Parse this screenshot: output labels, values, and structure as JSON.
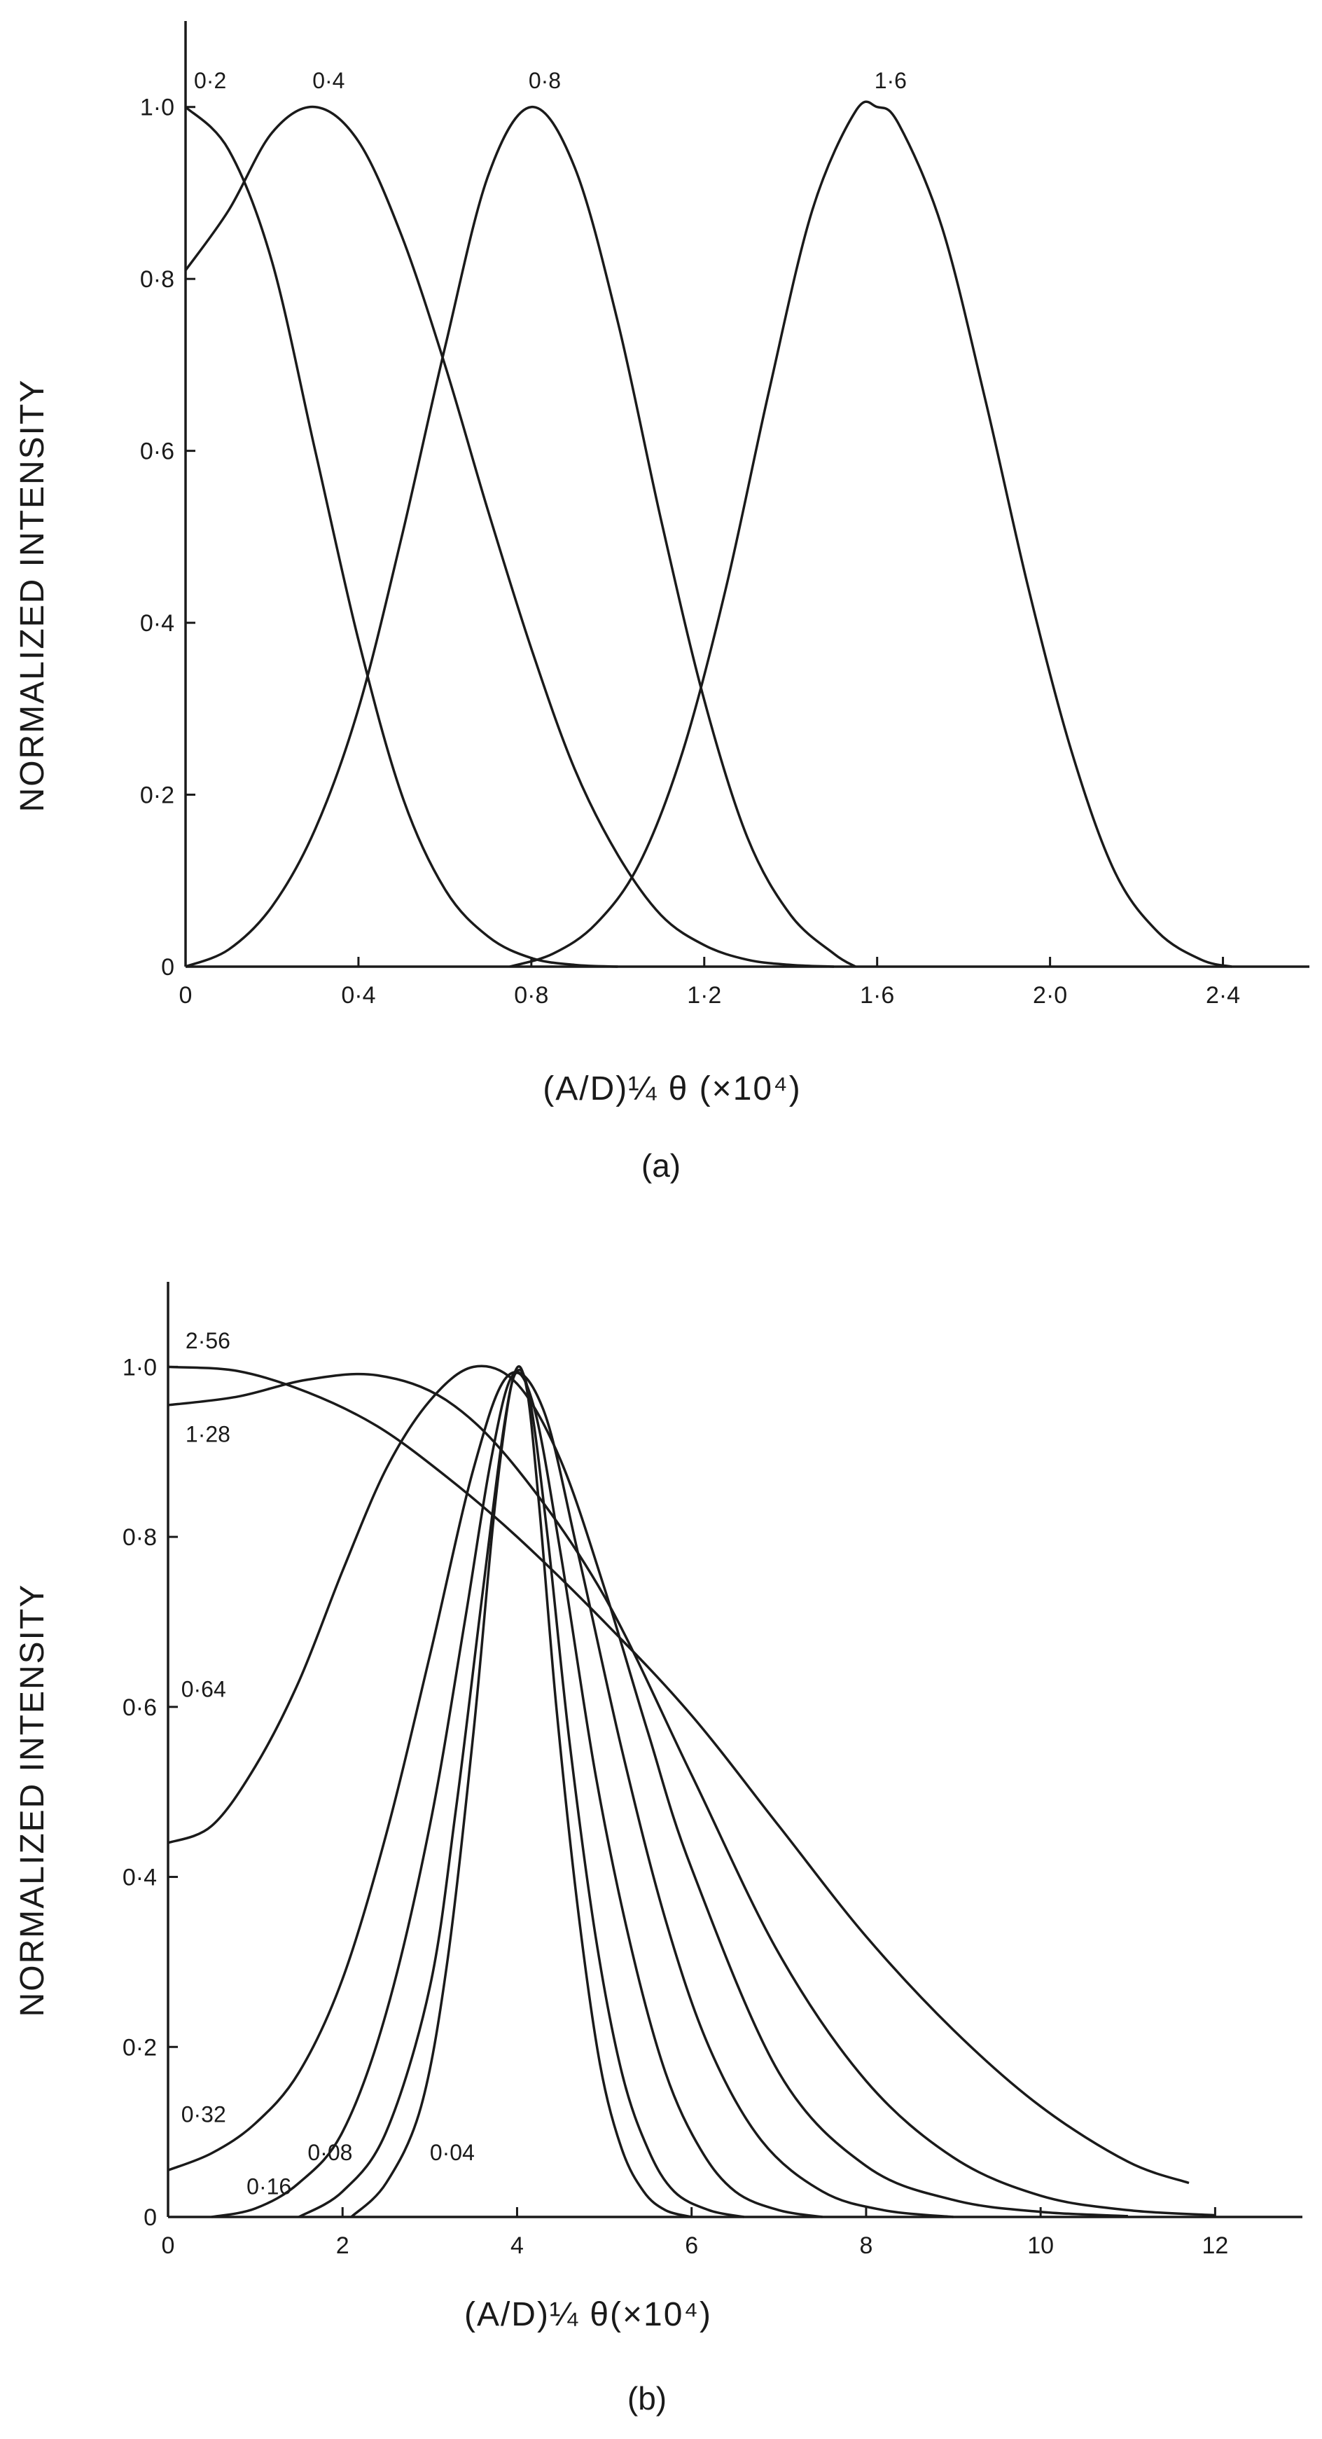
{
  "chart_data": [
    {
      "type": "line",
      "panel": "(a)",
      "ylabel": "NORMALIZED INTENSITY",
      "xlabel": "(A/D)¼ θ (×10⁴)",
      "xlim": [
        0,
        2.6
      ],
      "ylim": [
        0,
        1.1
      ],
      "x_ticks": [
        0,
        0.4,
        0.8,
        1.2,
        1.6,
        2.0,
        2.4
      ],
      "x_tick_labels": [
        "0",
        "0·4",
        "0·8",
        "1·2",
        "1·6",
        "2·0",
        "2·4"
      ],
      "y_ticks": [
        0,
        0.2,
        0.4,
        0.6,
        0.8,
        1.0
      ],
      "y_tick_labels": [
        "0",
        "0·2",
        "0·4",
        "0·6",
        "0·8",
        "1·0"
      ],
      "series": [
        {
          "name": "0·2",
          "x": [
            0,
            0.1,
            0.2,
            0.3,
            0.4,
            0.5,
            0.6,
            0.7,
            0.8,
            0.9,
            1.0
          ],
          "y": [
            1.0,
            0.95,
            0.82,
            0.6,
            0.38,
            0.2,
            0.09,
            0.035,
            0.01,
            0.002,
            0
          ]
        },
        {
          "name": "0·4",
          "x": [
            0,
            0.1,
            0.2,
            0.3,
            0.4,
            0.5,
            0.6,
            0.7,
            0.8,
            0.9,
            1.0,
            1.1,
            1.2,
            1.3,
            1.4,
            1.5
          ],
          "y": [
            0.81,
            0.88,
            0.97,
            1.0,
            0.96,
            0.85,
            0.7,
            0.53,
            0.37,
            0.23,
            0.13,
            0.06,
            0.025,
            0.008,
            0.002,
            0
          ]
        },
        {
          "name": "0·8",
          "x": [
            0,
            0.1,
            0.2,
            0.3,
            0.4,
            0.5,
            0.6,
            0.7,
            0.8,
            0.9,
            1.0,
            1.1,
            1.2,
            1.3,
            1.4,
            1.5,
            1.55
          ],
          "y": [
            0,
            0.02,
            0.07,
            0.16,
            0.3,
            0.5,
            0.72,
            0.92,
            1.0,
            0.93,
            0.75,
            0.52,
            0.31,
            0.15,
            0.06,
            0.015,
            0
          ]
        },
        {
          "name": "1·6",
          "x": [
            0.75,
            0.85,
            0.95,
            1.05,
            1.15,
            1.25,
            1.35,
            1.45,
            1.55,
            1.6,
            1.65,
            1.75,
            1.85,
            1.95,
            2.05,
            2.15,
            2.25,
            2.35,
            2.42
          ],
          "y": [
            0,
            0.015,
            0.05,
            0.12,
            0.25,
            0.44,
            0.67,
            0.88,
            0.995,
            1.0,
            0.98,
            0.86,
            0.66,
            0.44,
            0.25,
            0.11,
            0.04,
            0.008,
            0
          ]
        }
      ],
      "caption": "(a)"
    },
    {
      "type": "line",
      "panel": "(b)",
      "ylabel": "NORMALIZED INTENSITY",
      "xlabel": "(A/D)¼ θ(×10⁴)",
      "xlim": [
        0,
        13
      ],
      "ylim": [
        0,
        1.1
      ],
      "x_ticks": [
        0,
        2,
        4,
        6,
        8,
        10,
        12
      ],
      "x_tick_labels": [
        "0",
        "2",
        "4",
        "6",
        "8",
        "10",
        "12"
      ],
      "y_ticks": [
        0,
        0.2,
        0.4,
        0.6,
        0.8,
        1.0
      ],
      "y_tick_labels": [
        "0",
        "0·2",
        "0·4",
        "0·6",
        "0·8",
        "1·0"
      ],
      "series": [
        {
          "name": "2·56",
          "x": [
            0,
            0.8,
            1.6,
            2.4,
            3.2,
            4,
            5,
            6,
            7,
            8,
            9,
            10,
            11,
            11.7
          ],
          "y": [
            1.0,
            0.995,
            0.97,
            0.93,
            0.87,
            0.8,
            0.7,
            0.59,
            0.46,
            0.33,
            0.22,
            0.13,
            0.065,
            0.04
          ]
        },
        {
          "name": "1·28",
          "x": [
            0,
            0.8,
            1.6,
            2.4,
            3.2,
            4,
            5,
            6,
            7,
            8,
            9,
            10,
            11,
            12
          ],
          "y": [
            0.955,
            0.965,
            0.985,
            0.99,
            0.96,
            0.88,
            0.73,
            0.52,
            0.31,
            0.16,
            0.07,
            0.025,
            0.008,
            0.002
          ]
        },
        {
          "name": "0·64",
          "x": [
            0,
            0.5,
            1,
            1.5,
            2,
            2.5,
            3,
            3.5,
            4,
            4.5,
            5,
            5.5,
            6,
            7,
            8,
            9,
            10,
            11
          ],
          "y": [
            0.44,
            0.46,
            0.53,
            0.63,
            0.76,
            0.88,
            0.96,
            1.0,
            0.98,
            0.89,
            0.74,
            0.57,
            0.41,
            0.17,
            0.06,
            0.02,
            0.006,
            0.001
          ]
        },
        {
          "name": "0·32",
          "x": [
            0,
            0.5,
            1,
            1.5,
            2,
            2.5,
            3,
            3.5,
            3.9,
            4.3,
            4.7,
            5.2,
            5.7,
            6.2,
            6.8,
            7.5,
            8.2,
            9
          ],
          "y": [
            0.055,
            0.075,
            0.11,
            0.17,
            0.28,
            0.45,
            0.66,
            0.88,
            0.99,
            0.95,
            0.78,
            0.55,
            0.35,
            0.2,
            0.09,
            0.03,
            0.008,
            0
          ]
        },
        {
          "name": "0·16",
          "x": [
            0.5,
            1,
            1.5,
            2,
            2.5,
            3,
            3.4,
            3.7,
            3.95,
            4.2,
            4.5,
            4.9,
            5.3,
            5.7,
            6.1,
            6.5,
            7,
            7.5
          ],
          "y": [
            0,
            0.01,
            0.04,
            0.1,
            0.24,
            0.46,
            0.7,
            0.89,
            0.99,
            0.95,
            0.78,
            0.52,
            0.32,
            0.17,
            0.08,
            0.03,
            0.008,
            0
          ]
        },
        {
          "name": "0·08",
          "x": [
            1.5,
            2,
            2.5,
            3,
            3.3,
            3.6,
            3.85,
            4,
            4.15,
            4.35,
            4.6,
            4.9,
            5.2,
            5.5,
            5.8,
            6.2,
            6.6
          ],
          "y": [
            0,
            0.03,
            0.1,
            0.27,
            0.48,
            0.73,
            0.93,
            0.995,
            0.96,
            0.8,
            0.56,
            0.33,
            0.17,
            0.08,
            0.03,
            0.008,
            0
          ]
        },
        {
          "name": "0·04",
          "x": [
            2.1,
            2.5,
            2.9,
            3.2,
            3.5,
            3.75,
            3.95,
            4.1,
            4.25,
            4.45,
            4.7,
            4.95,
            5.2,
            5.45,
            5.7,
            6
          ],
          "y": [
            0,
            0.04,
            0.13,
            0.3,
            0.57,
            0.84,
            0.985,
            0.98,
            0.84,
            0.6,
            0.36,
            0.18,
            0.08,
            0.03,
            0.008,
            0
          ]
        }
      ],
      "caption": "(b)"
    }
  ]
}
